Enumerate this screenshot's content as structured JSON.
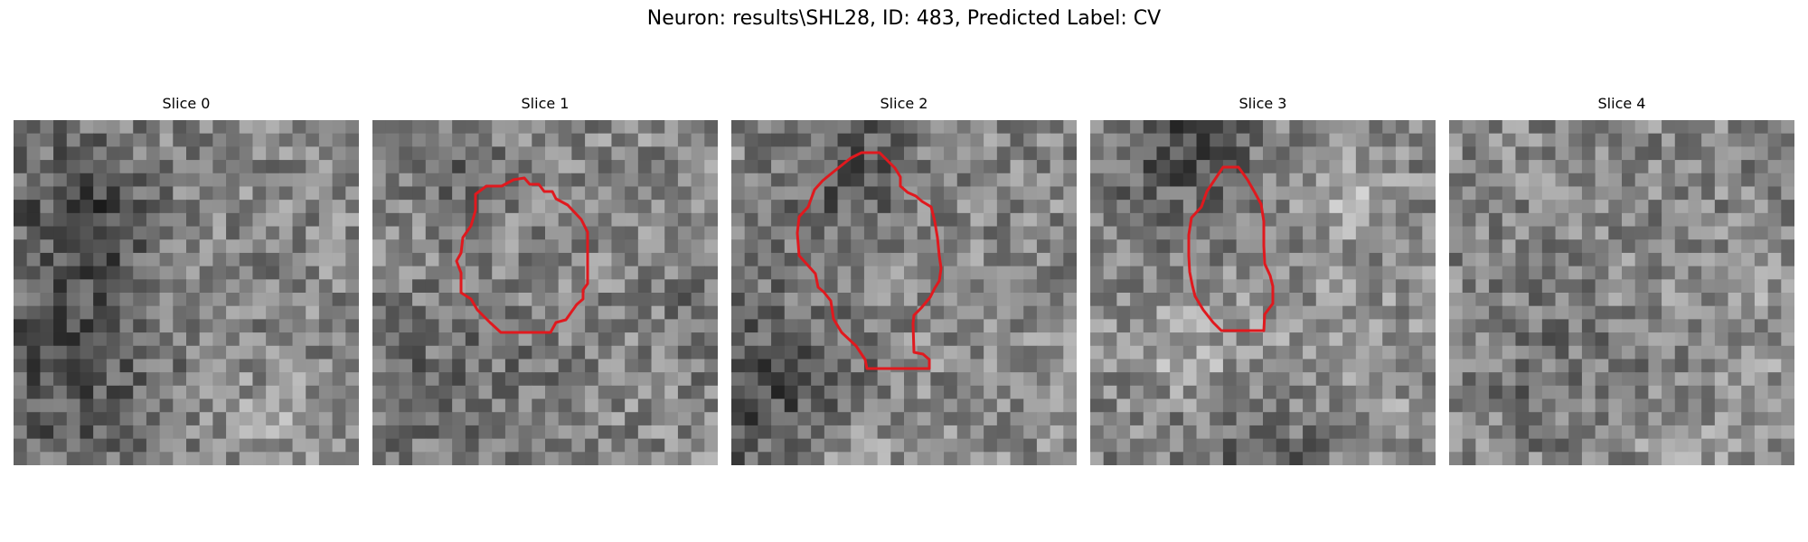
{
  "figure": {
    "title": "Neuron: results\\SHL28, ID: 483, Predicted Label: CV"
  },
  "panels": [
    {
      "title": "Slice 0",
      "seed": 11,
      "has_outline": false
    },
    {
      "title": "Slice 1",
      "seed": 27,
      "has_outline": true
    },
    {
      "title": "Slice 2",
      "seed": 43,
      "has_outline": true
    },
    {
      "title": "Slice 3",
      "seed": 59,
      "has_outline": true
    },
    {
      "title": "Slice 4",
      "seed": 71,
      "has_outline": false
    }
  ],
  "image": {
    "colormap": "gray",
    "outline_color": "#e0191e"
  }
}
